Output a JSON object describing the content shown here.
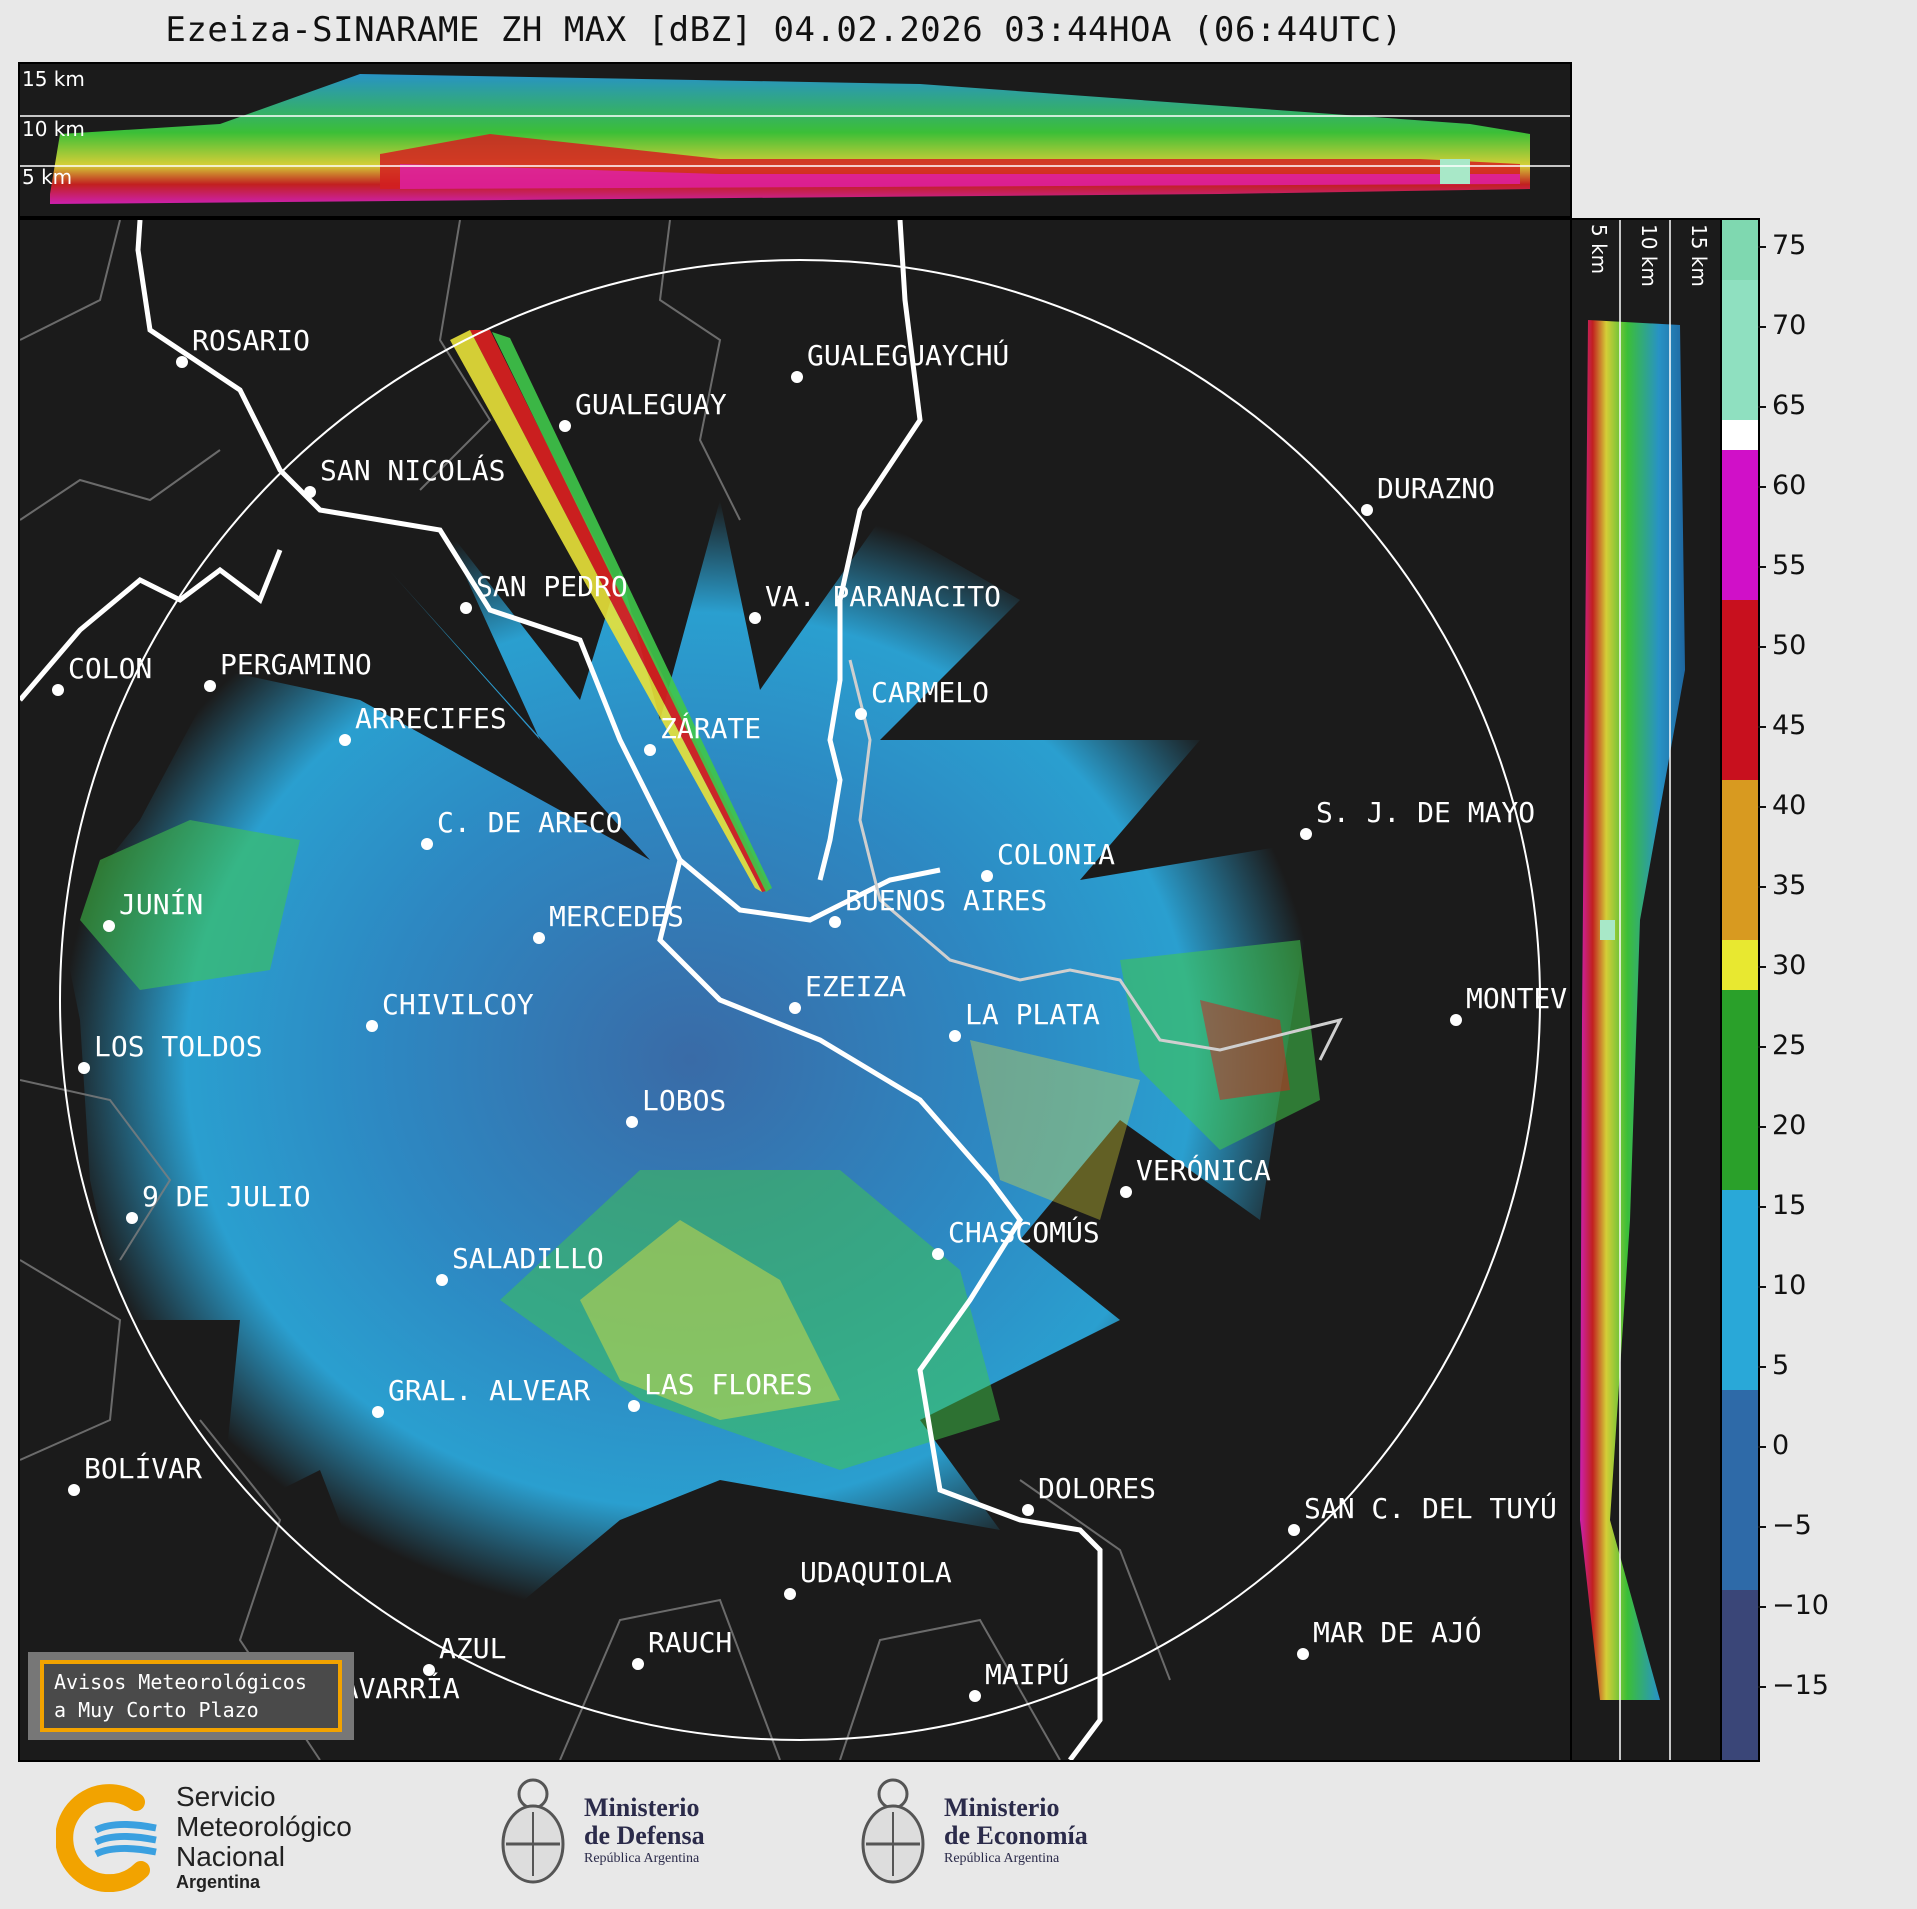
{
  "title": "Ezeiza-SINARAME ZH MAX [dBZ] 04.02.2026 03:44HOA (06:44UTC)",
  "top_section": {
    "labels": [
      "15 km",
      "10 km",
      "5 km"
    ]
  },
  "right_section": {
    "labels": [
      "5 km",
      "10 km",
      "15 km"
    ]
  },
  "colorbar": {
    "ticks": [
      "75",
      "70",
      "65",
      "60",
      "55",
      "50",
      "45",
      "40",
      "35",
      "30",
      "25",
      "20",
      "15",
      "10",
      "5",
      "0",
      "−5",
      "−10",
      "−15"
    ],
    "range": [
      -20,
      77
    ],
    "unit": "dBZ"
  },
  "cities": [
    {
      "name": "ROSARIO",
      "dot_color": "#ffffff"
    },
    {
      "name": "GUALEGUAYCHÚ",
      "dot_color": "#ffffff"
    },
    {
      "name": "GUALEGUAY",
      "dot_color": "#ffffff"
    },
    {
      "name": "SAN NICOLÁS",
      "dot_color": "#ffffff"
    },
    {
      "name": "DURAZNO",
      "dot_color": "#ffffff"
    },
    {
      "name": "SAN PEDRO",
      "dot_color": "#ffffff"
    },
    {
      "name": "VA. PARANACITO",
      "dot_color": "#ffffff"
    },
    {
      "name": "COLON",
      "dot_color": "#ffffff"
    },
    {
      "name": "PERGAMINO",
      "dot_color": "#ffffff"
    },
    {
      "name": "CARMELO",
      "dot_color": "#ffffff"
    },
    {
      "name": "ARRECIFES",
      "dot_color": "#ffffff"
    },
    {
      "name": "ZÁRATE",
      "dot_color": "#ffffff"
    },
    {
      "name": "S. J. DE MAYO",
      "dot_color": "#ffffff"
    },
    {
      "name": "C. DE ARECO",
      "dot_color": "#ffffff"
    },
    {
      "name": "COLONIA",
      "dot_color": "#ffffff"
    },
    {
      "name": "BUENOS AIRES",
      "dot_color": "#ffffff"
    },
    {
      "name": "JUNÍN",
      "dot_color": "#ffffff"
    },
    {
      "name": "MERCEDES",
      "dot_color": "#ffffff"
    },
    {
      "name": "EZEIZA",
      "dot_color": "#ffffff"
    },
    {
      "name": "MONTEV",
      "dot_color": "#ffffff"
    },
    {
      "name": "CHIVILCOY",
      "dot_color": "#ffffff"
    },
    {
      "name": "LA PLATA",
      "dot_color": "#ffffff"
    },
    {
      "name": "LOS TOLDOS",
      "dot_color": "#ffffff"
    },
    {
      "name": "LOBOS",
      "dot_color": "#ffffff"
    },
    {
      "name": "VERÓNICA",
      "dot_color": "#ffffff"
    },
    {
      "name": "9 DE JULIO",
      "dot_color": "#ffffff"
    },
    {
      "name": "CHASCOMÚS",
      "dot_color": "#ffffff"
    },
    {
      "name": "SALADILLO",
      "dot_color": "#ffffff"
    },
    {
      "name": "GRAL. ALVEAR",
      "dot_color": "#ffffff"
    },
    {
      "name": "LAS FLORES",
      "dot_color": "#ffffff"
    },
    {
      "name": "BOLÍVAR",
      "dot_color": "#ffffff"
    },
    {
      "name": "DOLORES",
      "dot_color": "#ffffff"
    },
    {
      "name": "SAN C. DEL TUYÚ",
      "dot_color": "#ffffff"
    },
    {
      "name": "UDAQUIOLA",
      "dot_color": "#ffffff"
    },
    {
      "name": "RAUCH",
      "dot_color": "#ffffff"
    },
    {
      "name": "AZUL",
      "dot_color": "#ffffff"
    },
    {
      "name": "MAR DE AJÓ",
      "dot_color": "#ffffff"
    },
    {
      "name": "OLAVARRÍA",
      "dot_color": "#ffffff"
    },
    {
      "name": "MAIPÚ",
      "dot_color": "#ffffff"
    }
  ],
  "avisos": {
    "line1": "Avisos Meteorológicos",
    "line2": "a Muy Corto Plazo"
  },
  "logos": {
    "smn": {
      "line1": "Servicio",
      "line2": "Meteorológico",
      "line3": "Nacional",
      "line4": "Argentina"
    },
    "defensa": {
      "line1": "Ministerio",
      "line2": "de Defensa",
      "line3": "República Argentina"
    },
    "economia": {
      "line1": "Ministerio",
      "line2": "de Economía",
      "line3": "República Argentina"
    }
  },
  "colors": {
    "background": "#e8e8e8",
    "map_bg": "#1b1b1b",
    "accent": "#f2a300"
  }
}
